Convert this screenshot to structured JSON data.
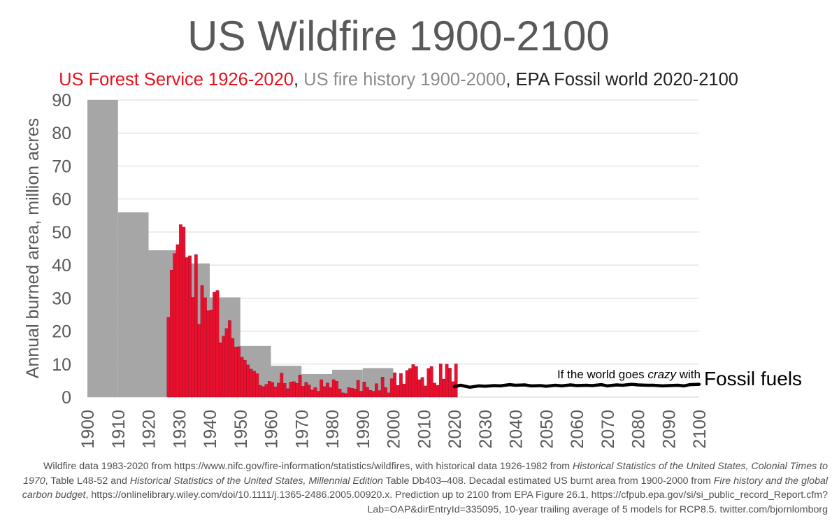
{
  "chart_data": {
    "type": "bar",
    "title": "US Wildfire 1900-2100",
    "subtitle": [
      {
        "text": "US Forest Service 1926-2020",
        "color": "#e8101c"
      },
      {
        "text": ", ",
        "color": "#222222"
      },
      {
        "text": "US fire history 1900-2000",
        "color": "#8c8c8c"
      },
      {
        "text": ", EPA Fossil world 2020-2100",
        "color": "#222222"
      }
    ],
    "ylabel": "Annual burned area, million acres",
    "xlabel": "",
    "xlim": [
      1900,
      2100
    ],
    "ylim": [
      0,
      90
    ],
    "y_ticks": [
      0,
      10,
      20,
      30,
      40,
      50,
      60,
      70,
      80,
      90
    ],
    "x_ticks": [
      1900,
      1910,
      1920,
      1930,
      1940,
      1950,
      1960,
      1970,
      1980,
      1990,
      2000,
      2010,
      2020,
      2030,
      2040,
      2050,
      2060,
      2070,
      2080,
      2090,
      2100
    ],
    "grid": true,
    "colors": {
      "forest_service": "#e8102c",
      "fire_history": "#a6a6a6",
      "fossil": "#000000",
      "grid": "#d9d9d9",
      "tick_text": "#595959"
    },
    "series": [
      {
        "name": "US fire history 1900-2000",
        "type": "step",
        "decades": [
          {
            "start": 1900,
            "end": 1910,
            "value": 90
          },
          {
            "start": 1910,
            "end": 1920,
            "value": 56
          },
          {
            "start": 1920,
            "end": 1930,
            "value": 44.5
          },
          {
            "start": 1930,
            "end": 1940,
            "value": 40.5
          },
          {
            "start": 1940,
            "end": 1950,
            "value": 30.2
          },
          {
            "start": 1950,
            "end": 1960,
            "value": 15.5
          },
          {
            "start": 1960,
            "end": 1970,
            "value": 9.5
          },
          {
            "start": 1970,
            "end": 1980,
            "value": 7
          },
          {
            "start": 1980,
            "end": 1990,
            "value": 8.3
          },
          {
            "start": 1990,
            "end": 2000,
            "value": 8.8
          }
        ]
      },
      {
        "name": "US Forest Service 1926-2020",
        "type": "bar",
        "years": [
          1926,
          1927,
          1928,
          1929,
          1930,
          1931,
          1932,
          1933,
          1934,
          1935,
          1936,
          1937,
          1938,
          1939,
          1940,
          1941,
          1942,
          1943,
          1944,
          1945,
          1946,
          1947,
          1948,
          1949,
          1950,
          1951,
          1952,
          1953,
          1954,
          1955,
          1956,
          1957,
          1958,
          1959,
          1960,
          1961,
          1962,
          1963,
          1964,
          1965,
          1966,
          1967,
          1968,
          1969,
          1970,
          1971,
          1972,
          1973,
          1974,
          1975,
          1976,
          1977,
          1978,
          1979,
          1980,
          1981,
          1982,
          1983,
          1984,
          1985,
          1986,
          1987,
          1988,
          1989,
          1990,
          1991,
          1992,
          1993,
          1994,
          1995,
          1996,
          1997,
          1998,
          1999,
          2000,
          2001,
          2002,
          2003,
          2004,
          2005,
          2006,
          2007,
          2008,
          2009,
          2010,
          2011,
          2012,
          2013,
          2014,
          2015,
          2016,
          2017,
          2018,
          2019,
          2020
        ],
        "values": [
          24.2,
          38.5,
          43.5,
          46.2,
          52.3,
          51.5,
          42.3,
          42.8,
          30.2,
          43.2,
          22.1,
          33.8,
          30.1,
          26.2,
          26.4,
          31.8,
          32.3,
          16.5,
          18.5,
          20.8,
          23.2,
          17.8,
          15.2,
          15.3,
          12.1,
          11.2,
          9.8,
          8.5,
          7.9,
          7.1,
          3.6,
          3.2,
          3.9,
          4.8,
          4.5,
          3.1,
          4.3,
          7.3,
          4.2,
          2.6,
          4.6,
          4.7,
          4.2,
          6.7,
          3.3,
          4.5,
          3.7,
          2.2,
          2.9,
          1.8,
          5.3,
          3.2,
          4.3,
          2.9,
          5.3,
          4.8,
          2.5,
          1.3,
          1.1,
          2.9,
          2.7,
          2.5,
          5.1,
          1.8,
          4.6,
          3.0,
          2.1,
          1.8,
          4.1,
          2.0,
          6.1,
          2.9,
          1.3,
          5.6,
          7.4,
          3.6,
          7.2,
          4.0,
          8.1,
          8.7,
          9.9,
          9.3,
          5.3,
          6.0,
          3.4,
          8.7,
          9.3,
          4.3,
          3.6,
          10.1,
          5.5,
          10.0,
          8.8,
          4.7,
          10.1
        ]
      },
      {
        "name": "EPA Fossil world 2020-2100",
        "type": "line",
        "x": [
          2020,
          2022,
          2025,
          2028,
          2030,
          2033,
          2035,
          2038,
          2040,
          2043,
          2045,
          2048,
          2050,
          2053,
          2055,
          2058,
          2060,
          2063,
          2065,
          2068,
          2070,
          2073,
          2075,
          2078,
          2080,
          2083,
          2085,
          2088,
          2090,
          2093,
          2095,
          2097,
          2100
        ],
        "values": [
          3.2,
          3.6,
          3.0,
          3.4,
          3.3,
          3.5,
          3.4,
          3.8,
          3.6,
          3.7,
          3.4,
          3.5,
          3.3,
          3.6,
          3.4,
          3.7,
          3.5,
          3.6,
          3.5,
          3.8,
          3.4,
          3.7,
          3.6,
          3.9,
          3.7,
          3.6,
          3.6,
          3.4,
          3.5,
          3.6,
          3.4,
          3.8,
          3.9
        ]
      }
    ],
    "annotation": {
      "prefix": "If the world goes ",
      "emphasis": "crazy",
      "suffix": " with",
      "big_label": "Fossil fuels"
    }
  },
  "footnote": {
    "p1": "Wildfire data 1983-2020 from https://www.nifc.gov/fire-information/statistics/wildfires, with historical data 1926-1982 from ",
    "i1": "Historical Statistics of the United States, Colonial Times to 1970",
    "p2": ", Table L48-52 and ",
    "i2": "Historical Statistics of the United States, Millennial Edition",
    "p3": " Table Db403–408. Decadal estimated US burnt area from 1900-2000 from ",
    "i3": "Fire history and the global carbon budget",
    "p4": ", https://onlinelibrary.wiley.com/doi/10.1111/j.1365-2486.2005.00920.x. Prediction up to 2100 from EPA Figure 26.1, https://cfpub.epa.gov/si/si_public_record_Report.cfm?Lab=OAP&dirEntryId=335095, 10-year trailing average of 5 models for RCP8.5. twitter.com/bjornlomborg"
  }
}
